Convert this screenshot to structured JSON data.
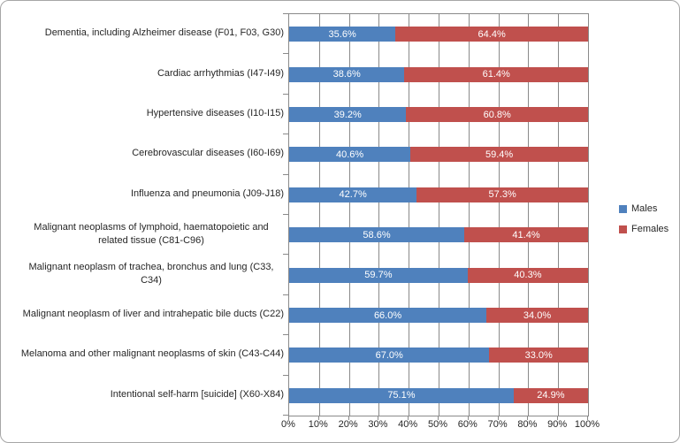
{
  "chart_data": {
    "type": "bar",
    "orientation": "horizontal",
    "stacked": true,
    "title": "",
    "categories": [
      "Dementia, including Alzheimer disease (F01, F03, G30)",
      "Cardiac arrhythmias (I47-I49)",
      "Hypertensive diseases (I10-I15)",
      "Cerebrovascular diseases (I60-I69)",
      "Influenza and pneumonia (J09-J18)",
      "Malignant neoplasms of lymphoid, haematopoietic and related tissue (C81-C96)",
      "Malignant neoplasm of trachea, bronchus and lung (C33, C34)",
      "Malignant neoplasm of liver and intrahepatic bile ducts (C22)",
      "Melanoma and other malignant neoplasms of skin  (C43-C44)",
      "Intentional self-harm [suicide] (X60-X84)"
    ],
    "series": [
      {
        "name": "Males",
        "color": "#4f81bd",
        "values": [
          35.6,
          38.6,
          39.2,
          40.6,
          42.7,
          58.6,
          59.7,
          66.0,
          67.0,
          75.1
        ]
      },
      {
        "name": "Females",
        "color": "#c0504d",
        "values": [
          64.4,
          61.4,
          60.8,
          59.4,
          57.3,
          41.4,
          40.3,
          34.0,
          33.0,
          24.9
        ]
      }
    ],
    "x_axis": {
      "min": 0,
      "max": 100,
      "tick_step": 10,
      "tick_labels": [
        "0%",
        "10%",
        "20%",
        "30%",
        "40%",
        "50%",
        "60%",
        "70%",
        "80%",
        "90%",
        "100%"
      ]
    },
    "data_labels": {
      "show": true,
      "decimals": 1,
      "suffix": "%",
      "color": "#ffffff"
    },
    "legend_position": "right",
    "grid": true,
    "gridline_color": "#8a8a8a"
  }
}
